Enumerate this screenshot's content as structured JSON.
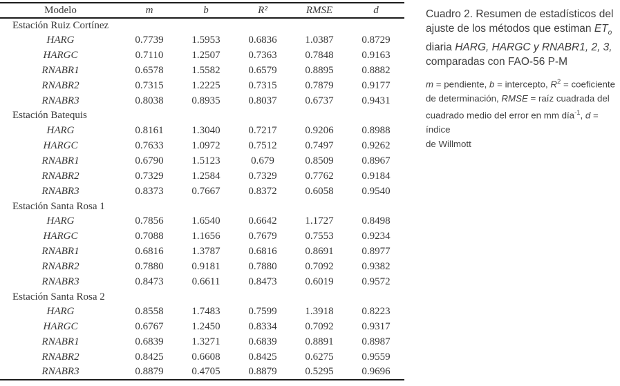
{
  "table": {
    "headers": [
      "Modelo",
      "m",
      "b",
      "R²",
      "RMSE",
      "d"
    ],
    "sections": [
      {
        "station": "Estación Ruiz Cortínez",
        "rows": [
          {
            "model": "HARG",
            "values": [
              "0.7739",
              "1.5953",
              "0.6836",
              "1.0387",
              "0.8729"
            ]
          },
          {
            "model": "HARGC",
            "values": [
              "0.7110",
              "1.2507",
              "0.7363",
              "0.7848",
              "0.9163"
            ]
          },
          {
            "model": "RNABR1",
            "values": [
              "0.6578",
              "1.5582",
              "0.6579",
              "0.8895",
              "0.8882"
            ]
          },
          {
            "model": "RNABR2",
            "values": [
              "0.7315",
              "1.2225",
              "0.7315",
              "0.7879",
              "0.9177"
            ]
          },
          {
            "model": "RNABR3",
            "values": [
              "0.8038",
              "0.8935",
              "0.8037",
              "0.6737",
              "0.9431"
            ]
          }
        ]
      },
      {
        "station": "Estación Batequis",
        "rows": [
          {
            "model": "HARG",
            "values": [
              "0.8161",
              "1.3040",
              "0.7217",
              "0.9206",
              "0.8988"
            ]
          },
          {
            "model": "HARGC",
            "values": [
              "0.7633",
              "1.0972",
              "0.7512",
              "0.7497",
              "0.9262"
            ]
          },
          {
            "model": "RNABR1",
            "values": [
              "0.6790",
              "1.5123",
              "0.679",
              "0.8509",
              "0.8967"
            ]
          },
          {
            "model": "RNABR2",
            "values": [
              "0.7329",
              "1.2584",
              "0.7329",
              "0.7762",
              "0.9184"
            ]
          },
          {
            "model": "RNABR3",
            "values": [
              "0.8373",
              "0.7667",
              "0.8372",
              "0.6058",
              "0.9540"
            ]
          }
        ]
      },
      {
        "station": "Estación Santa Rosa 1",
        "rows": [
          {
            "model": "HARG",
            "values": [
              "0.7856",
              "1.6540",
              "0.6642",
              "1.1727",
              "0.8498"
            ]
          },
          {
            "model": "HARGC",
            "values": [
              "0.7088",
              "1.1656",
              "0.7679",
              "0.7553",
              "0.9234"
            ]
          },
          {
            "model": "RNABR1",
            "values": [
              "0.6816",
              "1.3787",
              "0.6816",
              "0.8691",
              "0.8977"
            ]
          },
          {
            "model": "RNABR2",
            "values": [
              "0.7880",
              "0.9181",
              "0.7880",
              "0.7092",
              "0.9382"
            ]
          },
          {
            "model": "RNABR3",
            "values": [
              "0.8473",
              "0.6611",
              "0.8473",
              "0.6019",
              "0.9572"
            ]
          }
        ]
      },
      {
        "station": "Estación Santa Rosa 2",
        "rows": [
          {
            "model": "HARG",
            "values": [
              "0.8558",
              "1.7483",
              "0.7599",
              "1.3918",
              "0.8223"
            ]
          },
          {
            "model": "HARGC",
            "values": [
              "0.6767",
              "1.2450",
              "0.8334",
              "0.7092",
              "0.9317"
            ]
          },
          {
            "model": "RNABR1",
            "values": [
              "0.6839",
              "1.3271",
              "0.6839",
              "0.8891",
              "0.8987"
            ]
          },
          {
            "model": "RNABR2",
            "values": [
              "0.8425",
              "0.6608",
              "0.8425",
              "0.6275",
              "0.9559"
            ]
          },
          {
            "model": "RNABR3",
            "values": [
              "0.8879",
              "0.4705",
              "0.8879",
              "0.5295",
              "0.9696"
            ]
          }
        ]
      }
    ]
  },
  "caption": {
    "line1": "Cuadro 2. Resumen de estadísticos del",
    "line2a": "ajuste de los métodos que estiman ",
    "et": "ET",
    "et_sub": "o",
    "line3a": "diaria ",
    "line3_models": "HARG, HARGC y RNABR1, 2, 3,",
    "line4": "comparadas con FAO-56 P-M"
  },
  "note": {
    "sym_m": "m",
    "l1a": " = pendiente, ",
    "sym_b": "b",
    "l1b": " = intercepto, ",
    "sym_r": "R",
    "sym_r_sup": "2",
    "l1c": " = coeficiente",
    "l2a": "de determinación, ",
    "sym_rmse": "RMSE",
    "l2b": " = raíz cuadrada del",
    "l3a": "cuadrado medio del error en mm día",
    "sup_exp": "-1",
    "l3b": ", ",
    "sym_d": "d",
    "l3c": " = índice",
    "l4": "de Willmott"
  }
}
